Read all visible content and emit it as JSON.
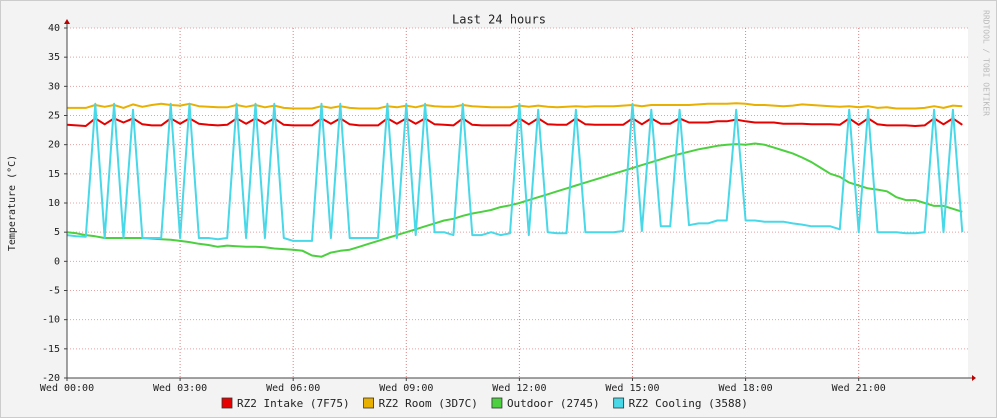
{
  "chart_data": {
    "type": "line",
    "title": "Last 24 hours",
    "y_label": "Temperature (°C)",
    "watermark": "RRDTOOL / TOBI OETIKER",
    "x": [
      0,
      0.25,
      0.5,
      0.75,
      1,
      1.25,
      1.5,
      1.75,
      2,
      2.25,
      2.5,
      2.75,
      3,
      3.25,
      3.5,
      3.75,
      4,
      4.25,
      4.5,
      4.75,
      5,
      5.25,
      5.5,
      5.75,
      6,
      6.25,
      6.5,
      6.75,
      7,
      7.25,
      7.5,
      7.75,
      8,
      8.25,
      8.5,
      8.75,
      9,
      9.25,
      9.5,
      9.75,
      10,
      10.25,
      10.5,
      10.75,
      11,
      11.25,
      11.5,
      11.75,
      12,
      12.25,
      12.5,
      12.75,
      13,
      13.25,
      13.5,
      13.75,
      14,
      14.25,
      14.5,
      14.75,
      15,
      15.25,
      15.5,
      15.75,
      16,
      16.25,
      16.5,
      16.75,
      17,
      17.25,
      17.5,
      17.75,
      18,
      18.25,
      18.5,
      18.75,
      19,
      19.25,
      19.5,
      19.75,
      20,
      20.25,
      20.5,
      20.75,
      21,
      21.25,
      21.5,
      21.75,
      22,
      22.25,
      22.5,
      22.75,
      23,
      23.25,
      23.5,
      23.75
    ],
    "xlim": [
      0,
      23.9
    ],
    "xticks": [
      {
        "value": 0,
        "label": "Wed 00:00"
      },
      {
        "value": 3,
        "label": "Wed 03:00"
      },
      {
        "value": 6,
        "label": "Wed 06:00"
      },
      {
        "value": 9,
        "label": "Wed 09:00"
      },
      {
        "value": 12,
        "label": "Wed 12:00"
      },
      {
        "value": 15,
        "label": "Wed 15:00"
      },
      {
        "value": 18,
        "label": "Wed 18:00"
      },
      {
        "value": 21,
        "label": "Wed 21:00"
      }
    ],
    "ylim": [
      -20,
      40
    ],
    "yticks": [
      -20,
      -15,
      -10,
      -5,
      0,
      5,
      10,
      15,
      20,
      25,
      30,
      35,
      40
    ],
    "grid": true,
    "series": [
      {
        "name": "RZ2 Intake (7F75)",
        "color": "#e60000",
        "values": [
          23.4,
          23.3,
          23.2,
          24.5,
          23.5,
          24.5,
          23.8,
          24.5,
          23.5,
          23.3,
          23.3,
          24.5,
          23.6,
          24.5,
          23.6,
          23.4,
          23.3,
          23.4,
          24.5,
          23.6,
          24.5,
          23.6,
          24.5,
          23.4,
          23.3,
          23.3,
          23.3,
          24.5,
          23.6,
          24.5,
          23.5,
          23.3,
          23.3,
          23.3,
          24.5,
          23.6,
          24.5,
          23.6,
          24.5,
          23.5,
          23.4,
          23.3,
          24.5,
          23.4,
          23.3,
          23.3,
          23.3,
          23.3,
          24.5,
          23.5,
          24.5,
          23.5,
          23.4,
          23.4,
          24.5,
          23.5,
          23.4,
          23.4,
          23.4,
          23.4,
          24.5,
          23.5,
          24.5,
          23.6,
          23.6,
          24.5,
          23.8,
          23.8,
          23.8,
          24,
          24,
          24.3,
          24,
          23.8,
          23.8,
          23.8,
          23.6,
          23.6,
          23.6,
          23.5,
          23.5,
          23.5,
          23.4,
          24.5,
          23.4,
          24.5,
          23.5,
          23.3,
          23.3,
          23.3,
          23.2,
          23.3,
          24.5,
          23.5,
          24.5,
          23.4
        ]
      },
      {
        "name": "RZ2 Room (3D7C)",
        "color": "#e8b000",
        "values": [
          26.3,
          26.3,
          26.3,
          26.8,
          26.5,
          26.8,
          26.3,
          26.9,
          26.5,
          26.8,
          27,
          26.8,
          26.7,
          27,
          26.6,
          26.5,
          26.4,
          26.4,
          26.8,
          26.5,
          26.8,
          26.4,
          26.7,
          26.3,
          26.2,
          26.2,
          26.2,
          26.6,
          26.3,
          26.6,
          26.3,
          26.2,
          26.2,
          26.2,
          26.6,
          26.4,
          26.7,
          26.4,
          26.8,
          26.6,
          26.5,
          26.5,
          26.8,
          26.6,
          26.5,
          26.4,
          26.4,
          26.4,
          26.7,
          26.5,
          26.7,
          26.5,
          26.4,
          26.5,
          26.6,
          26.5,
          26.6,
          26.6,
          26.6,
          26.7,
          26.8,
          26.6,
          26.8,
          26.8,
          26.8,
          26.8,
          26.8,
          26.9,
          27,
          27,
          27,
          27.1,
          27,
          26.8,
          26.8,
          26.7,
          26.6,
          26.7,
          26.9,
          26.8,
          26.7,
          26.6,
          26.5,
          26.6,
          26.4,
          26.6,
          26.3,
          26.4,
          26.2,
          26.2,
          26.2,
          26.3,
          26.6,
          26.3,
          26.7,
          26.6
        ]
      },
      {
        "name": "Outdoor (2745)",
        "color": "#4cd040",
        "values": [
          5,
          4.8,
          4.5,
          4.3,
          4,
          4,
          4,
          4,
          4,
          3.9,
          3.8,
          3.7,
          3.5,
          3.3,
          3,
          2.8,
          2.5,
          2.7,
          2.6,
          2.5,
          2.5,
          2.4,
          2.2,
          2.1,
          2,
          1.8,
          1,
          0.8,
          1.5,
          1.8,
          2,
          2.5,
          3,
          3.5,
          4,
          4.5,
          5,
          5.5,
          6,
          6.5,
          7,
          7.3,
          7.8,
          8.2,
          8.5,
          8.8,
          9.3,
          9.6,
          10,
          10.5,
          11,
          11.5,
          12,
          12.5,
          13,
          13.5,
          14,
          14.5,
          15,
          15.5,
          16,
          16.5,
          17,
          17.5,
          18,
          18.4,
          18.8,
          19.2,
          19.5,
          19.8,
          20,
          20.1,
          20,
          20.2,
          20,
          19.5,
          19,
          18.5,
          17.8,
          17,
          16,
          15,
          14.5,
          13.5,
          13,
          12.5,
          12.3,
          12,
          11,
          10.5,
          10.5,
          10,
          9.5,
          9.5,
          9,
          8.5
        ]
      },
      {
        "name": "RZ2 Cooling (3588)",
        "color": "#48d8e8",
        "values": [
          4.5,
          4.3,
          4.2,
          27,
          4,
          27,
          4,
          26,
          4,
          4,
          4,
          27,
          4,
          27,
          4,
          4,
          3.8,
          4,
          27,
          4,
          27,
          4,
          27,
          4,
          3.5,
          3.5,
          3.5,
          27,
          4,
          27,
          4,
          4,
          4,
          4,
          27,
          4,
          27,
          4.5,
          27,
          5,
          5,
          4.5,
          27,
          4.5,
          4.5,
          5,
          4.5,
          4.8,
          27,
          4.5,
          26,
          5,
          4.8,
          4.8,
          26,
          5,
          5,
          5,
          5,
          5.2,
          27,
          5.2,
          26,
          6,
          6,
          26,
          6.2,
          6.5,
          6.5,
          7,
          7,
          26,
          7,
          7,
          6.8,
          6.8,
          6.8,
          6.5,
          6.3,
          6,
          6,
          6,
          5.5,
          26,
          5,
          26,
          5,
          5,
          5,
          4.8,
          4.8,
          5,
          26,
          5,
          26,
          5
        ]
      }
    ]
  }
}
